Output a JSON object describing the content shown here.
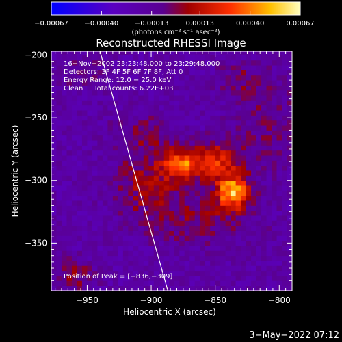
{
  "chart_data": {
    "type": "heatmap",
    "title": "Reconstructed RHESSI Image",
    "xlabel": "Heliocentric X (arcsec)",
    "ylabel": "Heliocentric Y (arcsec)",
    "xlim": [
      -978,
      -790
    ],
    "ylim": [
      -388,
      -197
    ],
    "x_ticks": [
      -950,
      -900,
      -850,
      -800
    ],
    "x_tick_labels": [
      "−950",
      "−900",
      "−850",
      "−800"
    ],
    "y_ticks": [
      -200,
      -250,
      -300,
      -350
    ],
    "y_tick_labels": [
      "−200",
      "−250",
      "−300",
      "−350"
    ],
    "colorbar": {
      "range": [
        -0.00067,
        0.00067
      ],
      "ticks": [
        -0.00067,
        -0.0004,
        -0.00013,
        0.00013,
        0.0004,
        0.00067
      ],
      "tick_labels": [
        "−0.00067",
        "−0.00040",
        "−0.00013",
        "0.00013",
        "0.00040",
        "0.00067"
      ],
      "unit_label": "(photons cm⁻² s⁻¹ asec⁻²)"
    },
    "annotations": [
      "16−Nov−2002 23:23:48.000 to 23:29:48.000",
      "Detectors: 3F 4F 5F 6F 7F 8F, Att 0",
      "Energy Range: 12.0 − 25.0 keV",
      "Clean     Total counts: 6.22E+03"
    ],
    "peak_label": "Position of Peak = [−836,−309]",
    "peak": [
      -836,
      -309
    ],
    "sources": [
      {
        "x": -876,
        "y": -287,
        "sx": 10,
        "sy": 8,
        "amp": 0.00055
      },
      {
        "x": -836,
        "y": -309,
        "sx": 9,
        "sy": 9,
        "amp": 0.00066
      },
      {
        "x": -848,
        "y": -284,
        "sx": 12,
        "sy": 10,
        "amp": 0.0004
      },
      {
        "x": -904,
        "y": -302,
        "sx": 16,
        "sy": 18,
        "amp": 0.00024
      },
      {
        "x": -862,
        "y": -330,
        "sx": 28,
        "sy": 16,
        "amp": 0.00016
      },
      {
        "x": -810,
        "y": -255,
        "sx": 20,
        "sy": 24,
        "amp": 0.00012
      },
      {
        "x": -905,
        "y": -262,
        "sx": 16,
        "sy": 10,
        "amp": 0.00016
      },
      {
        "x": -960,
        "y": -375,
        "sx": 10,
        "sy": 8,
        "amp": 0.0002
      },
      {
        "x": -955,
        "y": -215,
        "sx": 14,
        "sy": 10,
        "amp": 8e-05
      },
      {
        "x": -830,
        "y": -220,
        "sx": 12,
        "sy": 10,
        "amp": 0.00012
      }
    ],
    "background": -0.00018,
    "limb_line": {
      "x1": -940,
      "y1": -197,
      "x2": -887,
      "y2": -388
    },
    "grid": false
  },
  "timestamp": "3−May−2022 07:12"
}
